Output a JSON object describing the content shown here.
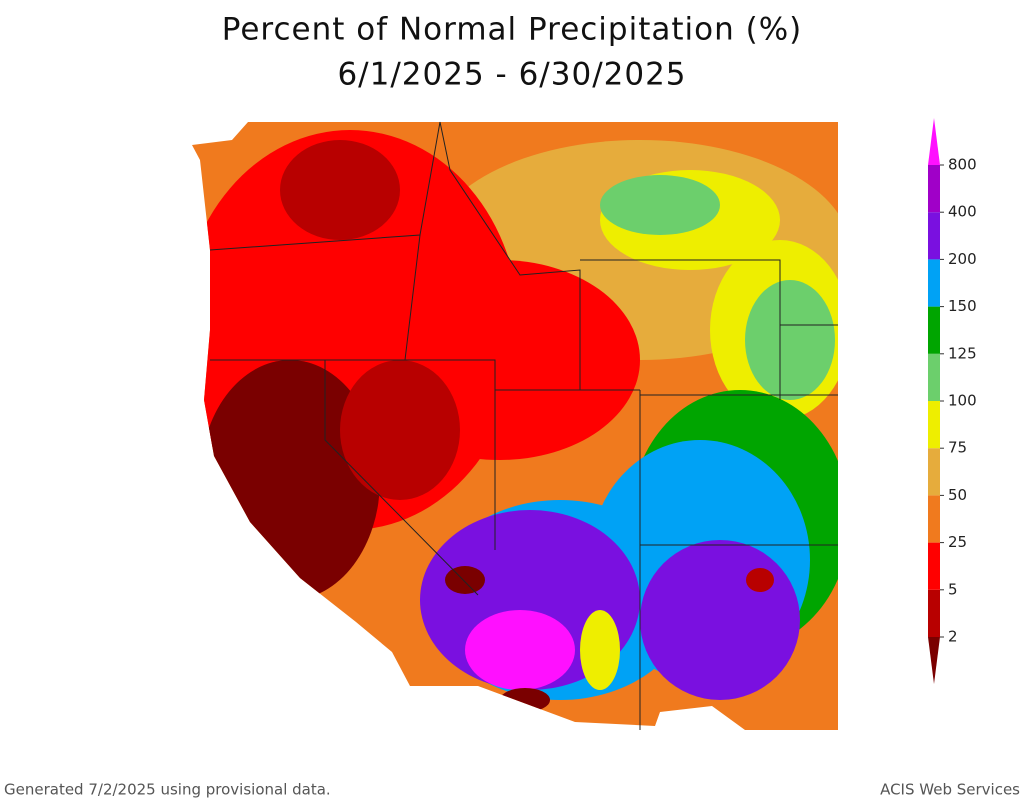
{
  "title": "Percent of Normal Precipitation (%)",
  "subtitle": "6/1/2025 - 6/30/2025",
  "legend": {
    "labels": [
      2,
      5,
      25,
      50,
      75,
      100,
      125,
      150,
      200,
      400,
      800
    ],
    "colors": [
      "#7a0000",
      "#b80000",
      "#ff0000",
      "#f07a1e",
      "#e6ac3c",
      "#eeee00",
      "#6ccf6c",
      "#00a500",
      "#00a2f5",
      "#7a10e0",
      "#a000c8",
      "#ff10ff"
    ]
  },
  "footer": {
    "left": "Generated 7/2/2025 using provisional data.",
    "right": "ACIS Web Services"
  }
}
